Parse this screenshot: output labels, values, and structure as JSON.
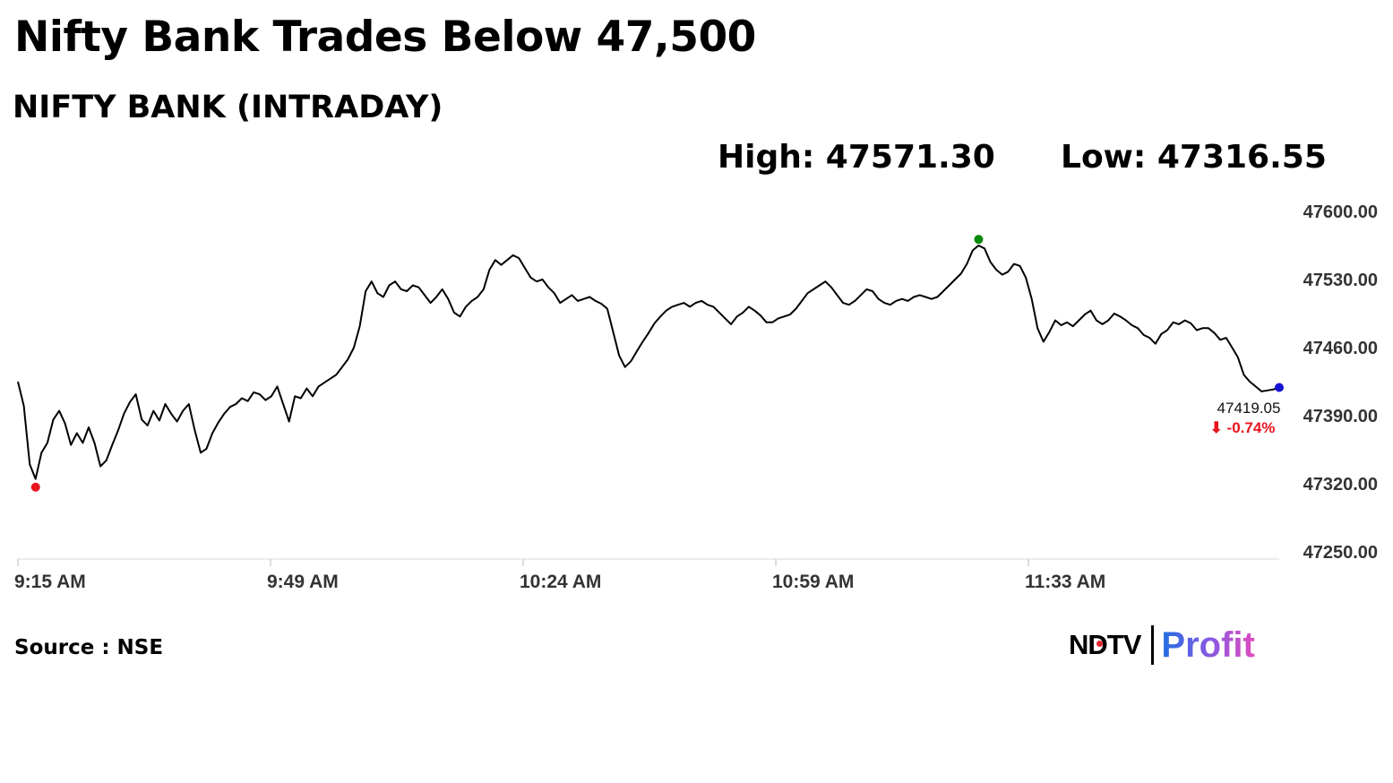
{
  "headline": "Nifty Bank Trades Below 47,500",
  "subtitle": "NIFTY BANK (INTRADAY)",
  "stats": {
    "high": "High: 47571.30",
    "low": "Low: 47316.55"
  },
  "source": "Source : NSE",
  "logo": {
    "ndtv": "NDTV",
    "profit": "Profit"
  },
  "colors": {
    "line": "#000000",
    "high_marker": "#0a8a0a",
    "low_marker": "#e8141e",
    "last_marker": "#1414d2",
    "change_down": "#e8141e"
  },
  "chart_data": {
    "type": "line",
    "title": "NIFTY BANK (INTRADAY)",
    "xlabel": "",
    "ylabel": "",
    "x_ticks": [
      "9:15 AM",
      "9:49 AM",
      "10:24 AM",
      "10:59 AM",
      "11:33 AM"
    ],
    "y_ticks": [
      "47600.00",
      "47530.00",
      "47460.00",
      "47390.00",
      "47320.00",
      "47250.00"
    ],
    "ylim": [
      47250,
      47600
    ],
    "grid": false,
    "last_value": "47419.05",
    "change": "-0.74%",
    "high": 47571.3,
    "low": 47316.55,
    "series": [
      {
        "values": [
          47425,
          47400,
          47340,
          47325,
          47352,
          47362,
          47386,
          47395,
          47382,
          47360,
          47372,
          47362,
          47378,
          47362,
          47338,
          47344,
          47360,
          47375,
          47392,
          47404,
          47412,
          47386,
          47380,
          47395,
          47385,
          47402,
          47392,
          47384,
          47395,
          47402,
          47375,
          47352,
          47356,
          47372,
          47383,
          47392,
          47399,
          47402,
          47408,
          47405,
          47414,
          47412,
          47406,
          47410,
          47420,
          47402,
          47384,
          47410,
          47408,
          47418,
          47410,
          47420,
          47424,
          47428,
          47432,
          47440,
          47448,
          47460,
          47482,
          47518,
          47528,
          47516,
          47512,
          47524,
          47528,
          47520,
          47518,
          47524,
          47522,
          47514,
          47506,
          47512,
          47520,
          47510,
          47496,
          47492,
          47502,
          47508,
          47512,
          47520,
          47540,
          47550,
          47545,
          47550,
          47555,
          47552,
          47542,
          47532,
          47528,
          47530,
          47522,
          47516,
          47506,
          47510,
          47514,
          47508,
          47510,
          47512,
          47508,
          47505,
          47500,
          47476,
          47452,
          47440,
          47446,
          47456,
          47466,
          47475,
          47485,
          47492,
          47498,
          47502,
          47504,
          47506,
          47502,
          47506,
          47508,
          47504,
          47502,
          47496,
          47490,
          47484,
          47492,
          47496,
          47502,
          47498,
          47493,
          47486,
          47486,
          47490,
          47492,
          47494,
          47500,
          47508,
          47516,
          47520,
          47524,
          47528,
          47522,
          47514,
          47506,
          47504,
          47508,
          47514,
          47520,
          47518,
          47510,
          47506,
          47504,
          47508,
          47510,
          47508,
          47512,
          47514,
          47512,
          47510,
          47512,
          47518,
          47524,
          47530,
          47536,
          47546,
          47560,
          47565,
          47562,
          47548,
          47540,
          47535,
          47538,
          47546,
          47544,
          47532,
          47510,
          47480,
          47466,
          47476,
          47488,
          47483,
          47486,
          47482,
          47488,
          47494,
          47498,
          47488,
          47484,
          47488,
          47495,
          47492,
          47488,
          47483,
          47480,
          47473,
          47470,
          47464,
          47474,
          47478,
          47486,
          47484,
          47488,
          47485,
          47478,
          47480,
          47480,
          47475,
          47468,
          47470,
          47460,
          47450,
          47432,
          47425,
          47420,
          47415,
          47416,
          47417,
          47419
        ]
      }
    ]
  }
}
